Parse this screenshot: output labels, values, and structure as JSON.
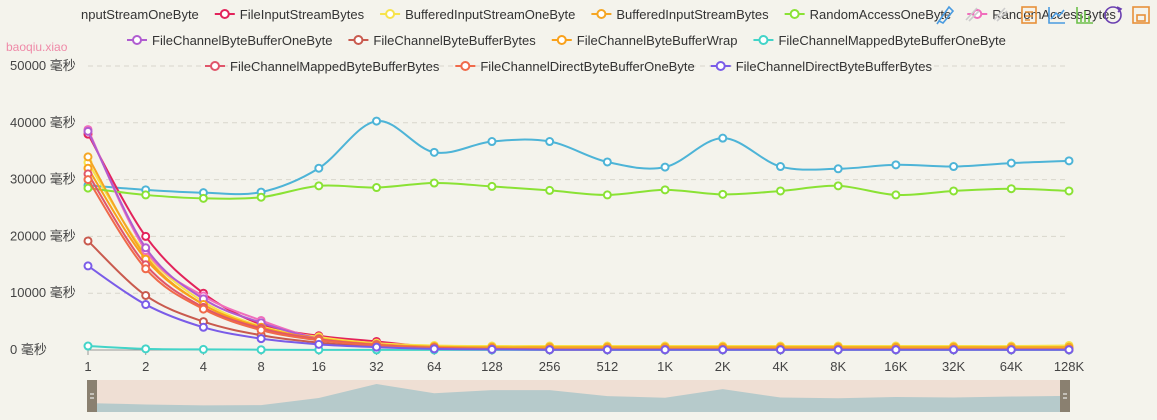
{
  "watermark": "baoqiu.xiao",
  "toolbox": [
    {
      "name": "mark-icon",
      "color": "#4a9be0"
    },
    {
      "name": "mark-undo-icon",
      "color": "#ccc"
    },
    {
      "name": "mark-clear-icon",
      "color": "#ccc"
    },
    {
      "name": "data-view-icon",
      "color": "#e8913a"
    },
    {
      "name": "line-chart-icon",
      "color": "#4a9be0"
    },
    {
      "name": "bar-chart-icon",
      "color": "#6cc04a"
    },
    {
      "name": "restore-icon",
      "color": "#6a3fb0"
    },
    {
      "name": "save-image-icon",
      "color": "#e8913a"
    }
  ],
  "chart_data": {
    "type": "line",
    "y_unit": "毫秒",
    "y_ticks": [
      "0 毫秒",
      "10000 毫秒",
      "20000 毫秒",
      "30000 毫秒",
      "40000 毫秒",
      "50000 毫秒"
    ],
    "ylim": [
      0,
      50000
    ],
    "categories": [
      "1",
      "2",
      "4",
      "8",
      "16",
      "32",
      "64",
      "128",
      "256",
      "512",
      "1K",
      "2K",
      "4K",
      "8K",
      "16K",
      "32K",
      "64K",
      "128K"
    ],
    "grid": true,
    "legend_position": "top",
    "data_zoom": true,
    "series": [
      {
        "name": "InputStreamOneByte",
        "legend_label": "nputStreamOneByte",
        "color": "#4db4d7",
        "values": [
          29000,
          28200,
          27700,
          27800,
          32000,
          40300,
          34800,
          36700,
          36700,
          33100,
          32200,
          37300,
          32300,
          31900,
          32600,
          32300,
          32900,
          33300
        ]
      },
      {
        "name": "FileInputStreamBytes",
        "color": "#e3235b",
        "values": [
          38000,
          20000,
          10000,
          4500,
          2500,
          1500,
          500,
          300,
          200,
          200,
          200,
          200,
          200,
          200,
          200,
          200,
          200,
          200
        ]
      },
      {
        "name": "BufferedInputStreamOneByte",
        "color": "#f7e34a",
        "values": [
          33000,
          17000,
          8500,
          4200,
          2300,
          1200,
          800,
          700,
          700,
          700,
          700,
          700,
          700,
          700,
          700,
          700,
          700,
          800
        ]
      },
      {
        "name": "BufferedInputStreamBytes",
        "color": "#f5a623",
        "values": [
          34000,
          16500,
          8000,
          4000,
          2000,
          1000,
          600,
          500,
          500,
          500,
          500,
          500,
          500,
          500,
          500,
          500,
          500,
          500
        ]
      },
      {
        "name": "RandomAccessOneByte",
        "color": "#8ae234",
        "values": [
          28500,
          27300,
          26700,
          26900,
          28900,
          28600,
          29400,
          28800,
          28100,
          27300,
          28200,
          27400,
          28000,
          28900,
          27300,
          28000,
          28400,
          28000
        ]
      },
      {
        "name": "RandomAccessBytes",
        "color": "#f06ebc",
        "values": [
          38800,
          17500,
          9500,
          5200,
          2000,
          1000,
          400,
          200,
          100,
          100,
          100,
          100,
          100,
          100,
          100,
          100,
          100,
          100
        ]
      },
      {
        "name": "FileChannelByteBufferOneByte",
        "color": "#b05cd0",
        "values": [
          38500,
          18000,
          9000,
          4800,
          2000,
          900,
          300,
          150,
          100,
          100,
          100,
          100,
          100,
          100,
          100,
          100,
          100,
          100
        ]
      },
      {
        "name": "FileChannelByteBufferBytes",
        "color": "#c95a4e",
        "values": [
          19200,
          9600,
          5000,
          2600,
          1300,
          600,
          200,
          100,
          50,
          50,
          50,
          50,
          50,
          50,
          50,
          50,
          50,
          50
        ]
      },
      {
        "name": "FileChannelByteBufferWrap",
        "color": "#f9a11b",
        "values": [
          32000,
          16000,
          8000,
          4000,
          2000,
          1000,
          500,
          250,
          200,
          200,
          200,
          200,
          200,
          200,
          200,
          200,
          200,
          200
        ]
      },
      {
        "name": "FileChannelMappedByteBufferOneByte",
        "color": "#42d4c8",
        "values": [
          700,
          200,
          100,
          50,
          30,
          20,
          20,
          20,
          20,
          20,
          20,
          20,
          20,
          20,
          20,
          20,
          20,
          20
        ]
      },
      {
        "name": "FileChannelMappedByteBufferBytes",
        "color": "#e0556a",
        "values": [
          31000,
          15000,
          7500,
          3800,
          1900,
          900,
          400,
          200,
          100,
          100,
          100,
          100,
          100,
          100,
          100,
          100,
          100,
          100
        ]
      },
      {
        "name": "FileChannelDirectByteBufferOneByte",
        "color": "#f06a4a",
        "values": [
          30000,
          14300,
          7200,
          3500,
          1700,
          800,
          300,
          150,
          80,
          80,
          80,
          80,
          80,
          80,
          80,
          80,
          80,
          80
        ]
      },
      {
        "name": "FileChannelDirectByteBufferBytes",
        "color": "#7a5ce8",
        "values": [
          14800,
          8000,
          4000,
          2000,
          1000,
          500,
          200,
          100,
          50,
          50,
          50,
          50,
          50,
          50,
          50,
          50,
          50,
          50
        ]
      }
    ],
    "zoom_start_label": "",
    "zoom_end_label": ""
  }
}
